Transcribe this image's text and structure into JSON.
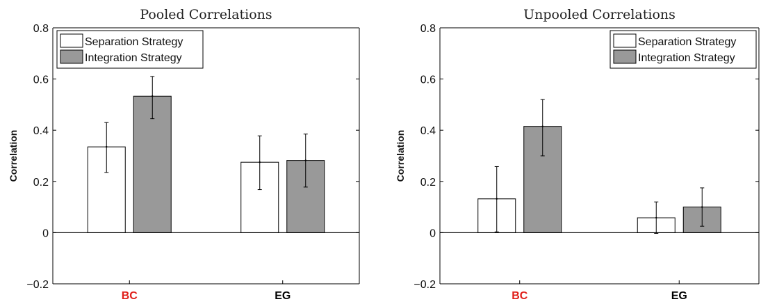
{
  "colors": {
    "separation": "#ffffff",
    "integration": "#999999",
    "highlight_category": "#e0201b",
    "axis": "#000000"
  },
  "chart_data": [
    {
      "type": "bar",
      "title": "Pooled Correlations",
      "ylabel": "Correlation",
      "xlabel": "",
      "ylim": [
        -0.2,
        0.8
      ],
      "yticks": [
        "−0.2",
        "0",
        "0.2",
        "0.4",
        "0.6",
        "0.8"
      ],
      "categories": [
        "BC",
        "EG"
      ],
      "category_colors": [
        "#e0201b",
        "#000000"
      ],
      "legend_position": "top-left",
      "series": [
        {
          "name": "Separation Strategy",
          "values": [
            0.335,
            0.275
          ],
          "err_low": [
            0.235,
            0.168
          ],
          "err_high": [
            0.43,
            0.378
          ]
        },
        {
          "name": "Integration Strategy",
          "values": [
            0.533,
            0.282
          ],
          "err_low": [
            0.445,
            0.178
          ],
          "err_high": [
            0.61,
            0.385
          ]
        }
      ]
    },
    {
      "type": "bar",
      "title": "Unpooled Correlations",
      "ylabel": "Correlation",
      "xlabel": "",
      "ylim": [
        -0.2,
        0.8
      ],
      "yticks": [
        "−0.2",
        "0",
        "0.2",
        "0.4",
        "0.6",
        "0.8"
      ],
      "categories": [
        "BC",
        "EG"
      ],
      "category_colors": [
        "#e0201b",
        "#000000"
      ],
      "legend_position": "top-right",
      "series": [
        {
          "name": "Separation Strategy",
          "values": [
            0.132,
            0.058
          ],
          "err_low": [
            0.003,
            -0.003
          ],
          "err_high": [
            0.258,
            0.12
          ]
        },
        {
          "name": "Integration Strategy",
          "values": [
            0.415,
            0.1
          ],
          "err_low": [
            0.3,
            0.025
          ],
          "err_high": [
            0.52,
            0.175
          ]
        }
      ]
    }
  ]
}
